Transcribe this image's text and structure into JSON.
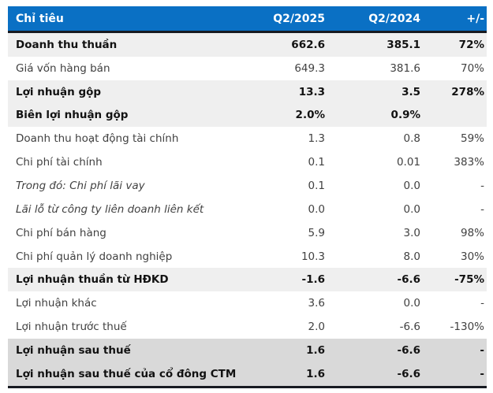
{
  "colors": {
    "header_bg": "#0a70c4",
    "header_text": "#ffffff",
    "row_highlight_bg": "#efefef",
    "row_total_bg": "#d9d9d9",
    "border_dark": "#171a21"
  },
  "table": {
    "columns": [
      "Chỉ tiêu",
      "Q2/2025",
      "Q2/2024",
      "+/-"
    ],
    "rows": [
      {
        "label": "Doanh thu thuần",
        "q2_2025": "662.6",
        "q2_2024": "385.1",
        "change": "72%",
        "style": "highlight"
      },
      {
        "label": "Giá vốn hàng bán",
        "q2_2025": "649.3",
        "q2_2024": "381.6",
        "change": "70%",
        "style": "normal"
      },
      {
        "label": "Lợi nhuận gộp",
        "q2_2025": "13.3",
        "q2_2024": "3.5",
        "change": "278%",
        "style": "highlight"
      },
      {
        "label": "Biên lợi nhuận gộp",
        "q2_2025": "2.0%",
        "q2_2024": "0.9%",
        "change": "",
        "style": "highlight"
      },
      {
        "label": "Doanh thu hoạt động tài chính",
        "q2_2025": "1.3",
        "q2_2024": "0.8",
        "change": "59%",
        "style": "normal"
      },
      {
        "label": "Chi phí tài chính",
        "q2_2025": "0.1",
        "q2_2024": "0.01",
        "change": "383%",
        "style": "normal"
      },
      {
        "label": "Trong đó: Chi phí lãi vay",
        "q2_2025": "0.1",
        "q2_2024": "0.0",
        "change": "-",
        "style": "italic"
      },
      {
        "label": "Lãi lỗ từ công ty liên doanh liên kết",
        "q2_2025": "0.0",
        "q2_2024": "0.0",
        "change": "-",
        "style": "italic"
      },
      {
        "label": "Chi phí bán hàng",
        "q2_2025": "5.9",
        "q2_2024": "3.0",
        "change": "98%",
        "style": "normal"
      },
      {
        "label": "Chi phí quản lý doanh nghiệp",
        "q2_2025": "10.3",
        "q2_2024": "8.0",
        "change": "30%",
        "style": "normal"
      },
      {
        "label": "Lợi nhuận thuần từ HĐKD",
        "q2_2025": "-1.6",
        "q2_2024": "-6.6",
        "change": "-75%",
        "style": "highlight"
      },
      {
        "label": "Lợi nhuận khác",
        "q2_2025": "3.6",
        "q2_2024": "0.0",
        "change": "-",
        "style": "normal"
      },
      {
        "label": "Lợi nhuận trước thuế",
        "q2_2025": "2.0",
        "q2_2024": "-6.6",
        "change": "-130%",
        "style": "normal"
      },
      {
        "label": "Lợi nhuận sau thuế",
        "q2_2025": "1.6",
        "q2_2024": "-6.6",
        "change": "-",
        "style": "total"
      },
      {
        "label": "Lợi nhuận sau thuế của cổ đông CTM",
        "q2_2025": "1.6",
        "q2_2024": "-6.6",
        "change": "-",
        "style": "total"
      }
    ]
  }
}
